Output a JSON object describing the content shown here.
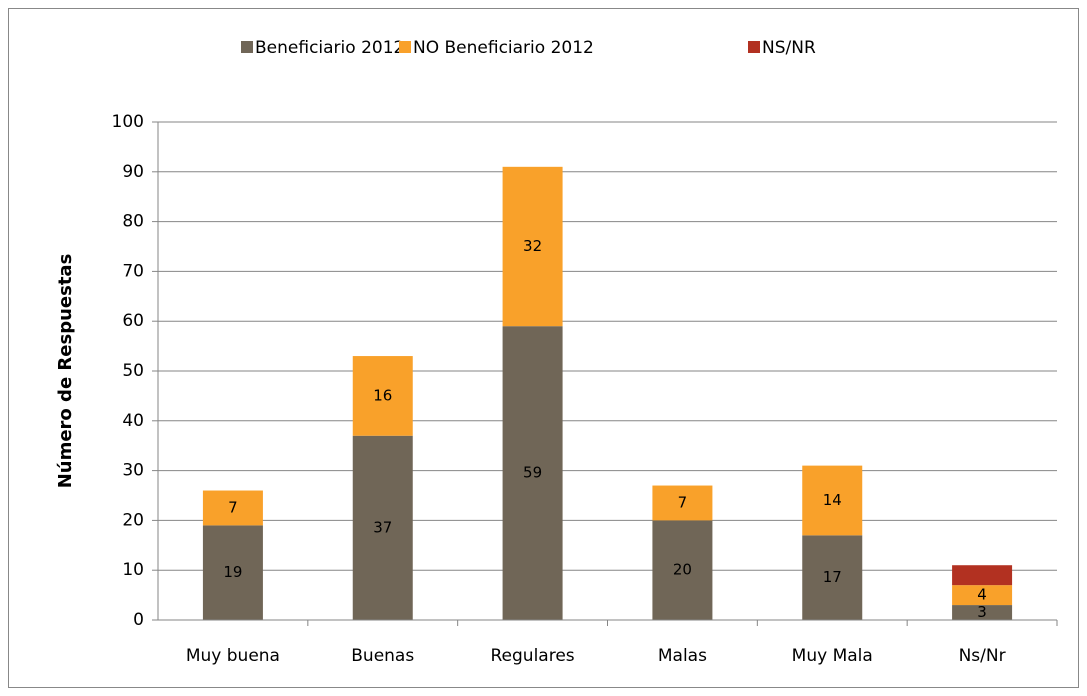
{
  "chart_data": {
    "type": "bar",
    "stacked": true,
    "y_label": "Número de Respuestas",
    "categories": [
      "Muy buena",
      "Buenas",
      "Regulares",
      "Malas",
      "Muy Mala",
      "Ns/Nr"
    ],
    "series": [
      {
        "name": "Beneficiario 2012",
        "color": "#706657",
        "values": [
          19,
          37,
          59,
          20,
          17,
          3
        ]
      },
      {
        "name": "NO Beneficiario 2012",
        "color": "#f9a12a",
        "values": [
          7,
          16,
          32,
          7,
          14,
          4
        ]
      },
      {
        "name": "NS/NR",
        "color": "#b23121",
        "values": [
          0,
          0,
          0,
          0,
          0,
          4
        ]
      }
    ],
    "ylim": [
      0,
      100
    ],
    "yticks": [
      0,
      10,
      20,
      30,
      40,
      50,
      60,
      70,
      80,
      90,
      100
    ],
    "grid": true,
    "legend": "top"
  }
}
